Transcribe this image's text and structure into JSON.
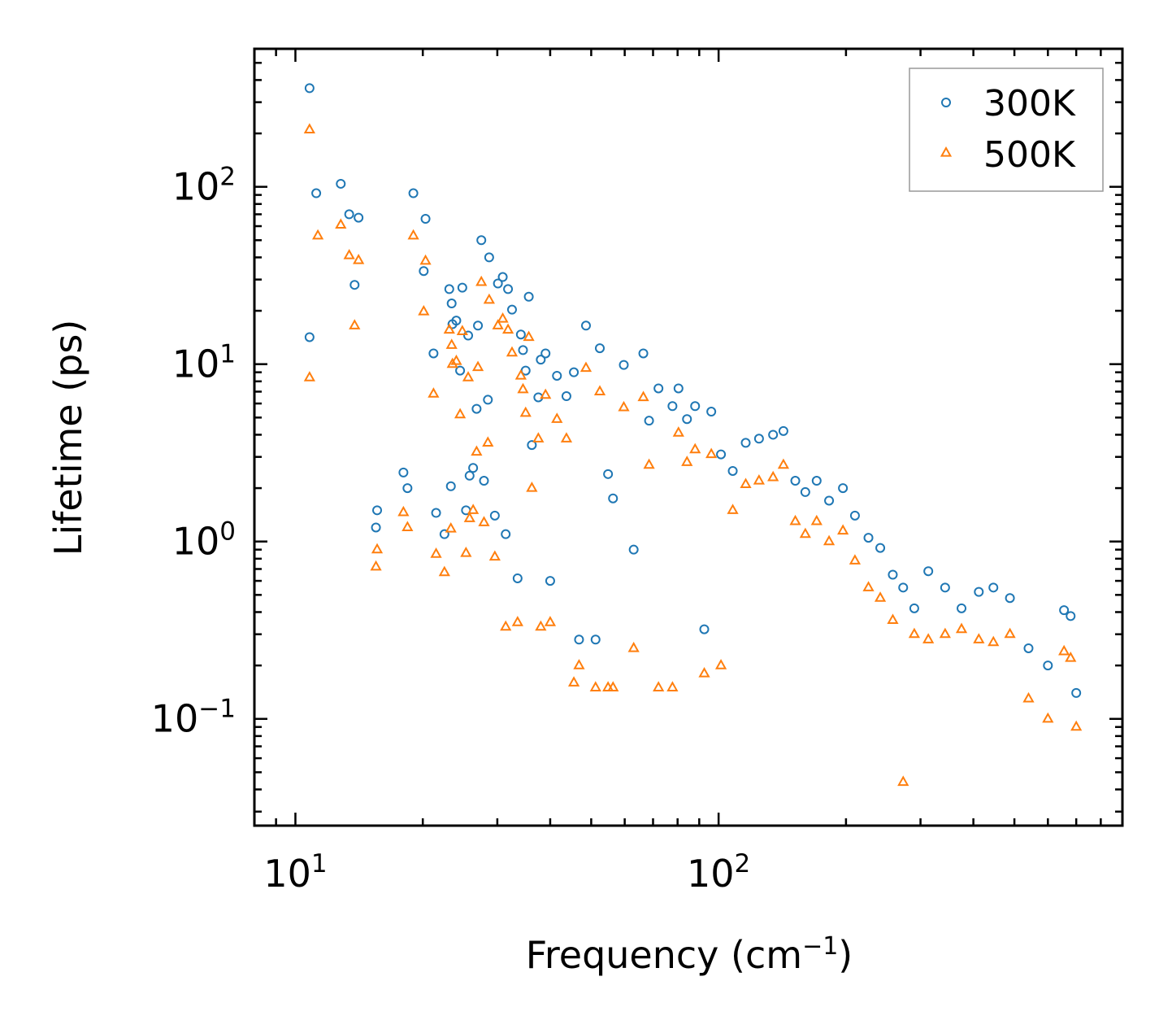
{
  "chart_data": {
    "type": "scatter",
    "title": "",
    "xlabel": "Frequency (cm",
    "xlabel_sup": "−1",
    "xlabel_suffix": ")",
    "ylabel": "Lifetime (ps)",
    "xscale": "log",
    "yscale": "log",
    "xlim": [
      8.0,
      900.0
    ],
    "ylim": [
      0.025,
      600.0
    ],
    "x_ticks": [
      {
        "value": 10,
        "base": "10",
        "exp": "1"
      },
      {
        "value": 100,
        "base": "10",
        "exp": "2"
      }
    ],
    "y_ticks": [
      {
        "value": 100,
        "base": "10",
        "exp": "2"
      },
      {
        "value": 10,
        "base": "10",
        "exp": "1"
      },
      {
        "value": 1,
        "base": "10",
        "exp": "0"
      },
      {
        "value": 0.1,
        "base": "10",
        "exp": "−1"
      }
    ],
    "legend_position": "top-right",
    "series": [
      {
        "name": "300K",
        "marker": "circle-open",
        "color": "#1f77b4",
        "points": [
          [
            10.8,
            360
          ],
          [
            10.8,
            14.2
          ],
          [
            11.2,
            92
          ],
          [
            12.8,
            104
          ],
          [
            13.4,
            70
          ],
          [
            13.8,
            28
          ],
          [
            14.1,
            67
          ],
          [
            15.5,
            1.2
          ],
          [
            15.6,
            1.5
          ],
          [
            18,
            2.45
          ],
          [
            18.4,
            2.0
          ],
          [
            19,
            92
          ],
          [
            20.1,
            33.5
          ],
          [
            20.3,
            66
          ],
          [
            21.2,
            11.5
          ],
          [
            21.5,
            1.45
          ],
          [
            22.5,
            1.1
          ],
          [
            23.1,
            26.5
          ],
          [
            23.3,
            2.05
          ],
          [
            23.4,
            22
          ],
          [
            23.5,
            16.8
          ],
          [
            24,
            17.6
          ],
          [
            24.5,
            9.2
          ],
          [
            24.8,
            27
          ],
          [
            25.3,
            1.5
          ],
          [
            25.6,
            14.5
          ],
          [
            25.8,
            2.35
          ],
          [
            26.3,
            2.6
          ],
          [
            26.8,
            5.6
          ],
          [
            27,
            16.5
          ],
          [
            27.5,
            50
          ],
          [
            27.9,
            2.2
          ],
          [
            28.5,
            6.3
          ],
          [
            28.7,
            40
          ],
          [
            29.6,
            1.4
          ],
          [
            30.1,
            28.5
          ],
          [
            30.9,
            31
          ],
          [
            31.4,
            1.1
          ],
          [
            31.8,
            26.5
          ],
          [
            32.5,
            20.3
          ],
          [
            33.5,
            0.62
          ],
          [
            34.1,
            14.7
          ],
          [
            34.5,
            12
          ],
          [
            35,
            9.2
          ],
          [
            35.6,
            24
          ],
          [
            36.2,
            3.5
          ],
          [
            37.5,
            6.5
          ],
          [
            38,
            10.6
          ],
          [
            39,
            11.5
          ],
          [
            40,
            0.6
          ],
          [
            41.5,
            8.6
          ],
          [
            43.7,
            6.6
          ],
          [
            45.5,
            9
          ],
          [
            46.8,
            0.28
          ],
          [
            48.6,
            16.5
          ],
          [
            51.2,
            0.28
          ],
          [
            52.4,
            12.3
          ],
          [
            54.8,
            2.4
          ],
          [
            56.3,
            1.75
          ],
          [
            59.7,
            9.9
          ],
          [
            63,
            0.9
          ],
          [
            66.4,
            11.5
          ],
          [
            68.5,
            4.8
          ],
          [
            72.1,
            7.3
          ],
          [
            77.8,
            5.8
          ],
          [
            80.4,
            7.3
          ],
          [
            84.2,
            4.9
          ],
          [
            88,
            5.8
          ],
          [
            92.5,
            0.32
          ],
          [
            96.1,
            5.4
          ],
          [
            101.3,
            3.1
          ],
          [
            108,
            2.5
          ],
          [
            115.9,
            3.6
          ],
          [
            124.6,
            3.8
          ],
          [
            134.5,
            4.0
          ],
          [
            142.3,
            4.2
          ],
          [
            151.8,
            2.2
          ],
          [
            160.3,
            1.9
          ],
          [
            170.5,
            2.2
          ],
          [
            182.4,
            1.7
          ],
          [
            196.7,
            2.0
          ],
          [
            210,
            1.4
          ],
          [
            226,
            1.05
          ],
          [
            241,
            0.92
          ],
          [
            258,
            0.65
          ],
          [
            273,
            0.55
          ],
          [
            290,
            0.42
          ],
          [
            313,
            0.68
          ],
          [
            343,
            0.55
          ],
          [
            375,
            0.42
          ],
          [
            412,
            0.52
          ],
          [
            446,
            0.55
          ],
          [
            488,
            0.48
          ],
          [
            540,
            0.25
          ],
          [
            600,
            0.2
          ],
          [
            655,
            0.41
          ],
          [
            679,
            0.38
          ],
          [
            700,
            0.14
          ]
        ]
      },
      {
        "name": "500K",
        "marker": "triangle-open",
        "color": "#ff7f0e",
        "points": [
          [
            10.8,
            210
          ],
          [
            10.8,
            8.4
          ],
          [
            11.3,
            53
          ],
          [
            12.8,
            61
          ],
          [
            13.4,
            41
          ],
          [
            13.8,
            16.5
          ],
          [
            14.1,
            38.5
          ],
          [
            15.5,
            0.72
          ],
          [
            15.6,
            0.9
          ],
          [
            18,
            1.46
          ],
          [
            18.4,
            1.2
          ],
          [
            19,
            53
          ],
          [
            20.1,
            19.8
          ],
          [
            20.3,
            38.2
          ],
          [
            21.2,
            6.8
          ],
          [
            21.5,
            0.85
          ],
          [
            22.5,
            0.67
          ],
          [
            23.1,
            15.6
          ],
          [
            23.3,
            1.18
          ],
          [
            23.4,
            12.8
          ],
          [
            23.5,
            10
          ],
          [
            24,
            10.4
          ],
          [
            24.5,
            5.2
          ],
          [
            24.8,
            15.3
          ],
          [
            25.3,
            0.86
          ],
          [
            25.6,
            8.4
          ],
          [
            25.8,
            1.35
          ],
          [
            26.3,
            1.5
          ],
          [
            26.8,
            3.2
          ],
          [
            27,
            9.6
          ],
          [
            27.5,
            29
          ],
          [
            27.9,
            1.28
          ],
          [
            28.5,
            3.6
          ],
          [
            28.7,
            23
          ],
          [
            29.6,
            0.82
          ],
          [
            30.1,
            16.5
          ],
          [
            30.9,
            18
          ],
          [
            31.4,
            0.33
          ],
          [
            31.8,
            15.6
          ],
          [
            32.5,
            11.6
          ],
          [
            33.5,
            0.35
          ],
          [
            34.1,
            8.6
          ],
          [
            34.5,
            7.2
          ],
          [
            35,
            5.3
          ],
          [
            35.6,
            14.2
          ],
          [
            36.2,
            2.0
          ],
          [
            37.5,
            3.8
          ],
          [
            38,
            0.33
          ],
          [
            39,
            6.7
          ],
          [
            40,
            0.35
          ],
          [
            41.5,
            4.9
          ],
          [
            43.7,
            3.8
          ],
          [
            45.5,
            0.16
          ],
          [
            46.8,
            0.2
          ],
          [
            48.6,
            9.5
          ],
          [
            51.2,
            0.15
          ],
          [
            52.4,
            7.0
          ],
          [
            54.8,
            0.15
          ],
          [
            56.3,
            0.15
          ],
          [
            59.7,
            5.7
          ],
          [
            63,
            0.25
          ],
          [
            66.4,
            6.5
          ],
          [
            68.5,
            2.7
          ],
          [
            72.1,
            0.15
          ],
          [
            77.8,
            0.15
          ],
          [
            80.4,
            4.1
          ],
          [
            84.2,
            2.8
          ],
          [
            88,
            3.3
          ],
          [
            92.5,
            0.18
          ],
          [
            96.1,
            3.1
          ],
          [
            101.3,
            0.2
          ],
          [
            108,
            1.5
          ],
          [
            115.9,
            2.1
          ],
          [
            124.6,
            2.2
          ],
          [
            134.5,
            2.3
          ],
          [
            142.3,
            2.7
          ],
          [
            151.8,
            1.3
          ],
          [
            160.3,
            1.1
          ],
          [
            170.5,
            1.3
          ],
          [
            182.4,
            1.0
          ],
          [
            196.7,
            1.15
          ],
          [
            210,
            0.78
          ],
          [
            226,
            0.55
          ],
          [
            241,
            0.48
          ],
          [
            258,
            0.36
          ],
          [
            273,
            0.044
          ],
          [
            290,
            0.3
          ],
          [
            313,
            0.28
          ],
          [
            343,
            0.3
          ],
          [
            375,
            0.32
          ],
          [
            412,
            0.28
          ],
          [
            446,
            0.27
          ],
          [
            488,
            0.3
          ],
          [
            540,
            0.13
          ],
          [
            600,
            0.1
          ],
          [
            655,
            0.24
          ],
          [
            679,
            0.22
          ],
          [
            700,
            0.09
          ]
        ]
      }
    ]
  }
}
